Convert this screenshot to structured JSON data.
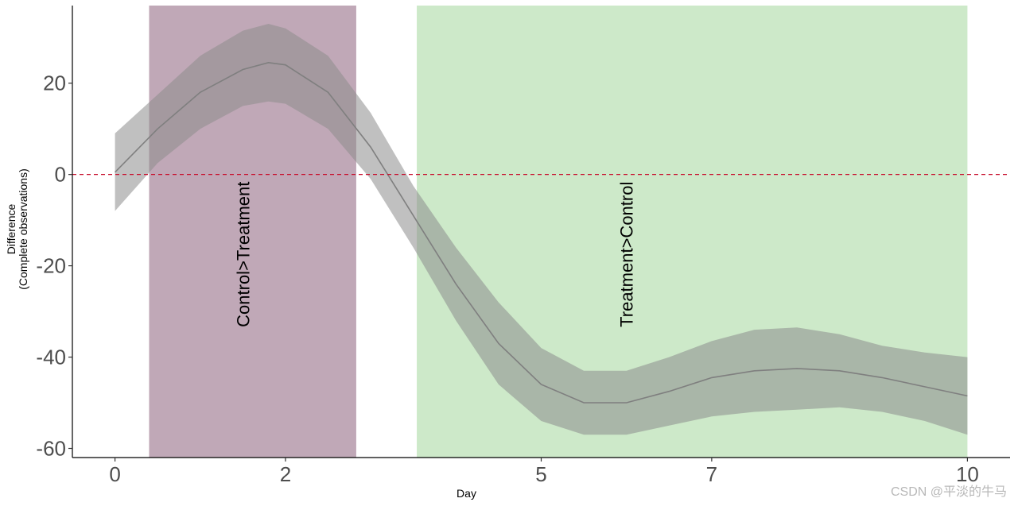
{
  "chart_data": {
    "type": "area",
    "xlabel": "Day",
    "ylabel": [
      "Difference",
      "(Complete observations)"
    ],
    "xlim": [
      -0.5,
      10.5
    ],
    "ylim": [
      -62,
      37
    ],
    "x_ticks": [
      0,
      2,
      5,
      7,
      10
    ],
    "y_ticks": [
      20,
      0,
      -20,
      -40,
      -60
    ],
    "y_tick_labels": [
      "20",
      "0",
      "-20",
      "-40",
      "-60"
    ],
    "reference_line": {
      "y": 0,
      "style": "dashed",
      "color": "#c8102e"
    },
    "regions": [
      {
        "name": "Control>Treatment",
        "label": "Control>Treatment",
        "x_start": 0.4,
        "x_end": 2.83,
        "color": "#a27f95",
        "label_x": 1.5,
        "label_y": -17.5
      },
      {
        "name": "Treatment>Control",
        "label": "Treatment>Control",
        "x_start": 3.54,
        "x_end": 10,
        "color": "#b5dfb0",
        "label_x": 6,
        "label_y": -17.5
      }
    ],
    "series": [
      {
        "x": [
          0,
          0.5,
          1,
          1.5,
          1.8,
          2,
          2.5,
          3,
          3.5,
          4,
          4.5,
          5,
          5.5,
          6,
          6.5,
          7,
          7.5,
          8,
          8.5,
          9,
          9.5,
          10
        ],
        "y": [
          0.5,
          10,
          18,
          23,
          24.5,
          24,
          18,
          6,
          -9,
          -24,
          -37,
          -46,
          -50,
          -50,
          -47.5,
          -44.5,
          -43,
          -42.5,
          -43,
          -44.5,
          -46.5,
          -48.5
        ],
        "lower": [
          -8,
          2.5,
          10,
          15,
          16,
          15.5,
          10,
          -1,
          -16,
          -32,
          -46,
          -54,
          -57,
          -57,
          -55,
          -53,
          -52,
          -51.5,
          -51,
          -52,
          -54,
          -57
        ],
        "upper": [
          9,
          17.5,
          26,
          31.5,
          33,
          32,
          26,
          13.5,
          -2.5,
          -16,
          -28,
          -38,
          -43,
          -43,
          -40,
          -36.5,
          -34,
          -33.5,
          -35,
          -37.5,
          -39,
          -40
        ]
      }
    ],
    "colors": {
      "line": "#7f7f7f",
      "band": "#8c8c8c"
    }
  },
  "watermark": "CSDN @平淡的牛马"
}
